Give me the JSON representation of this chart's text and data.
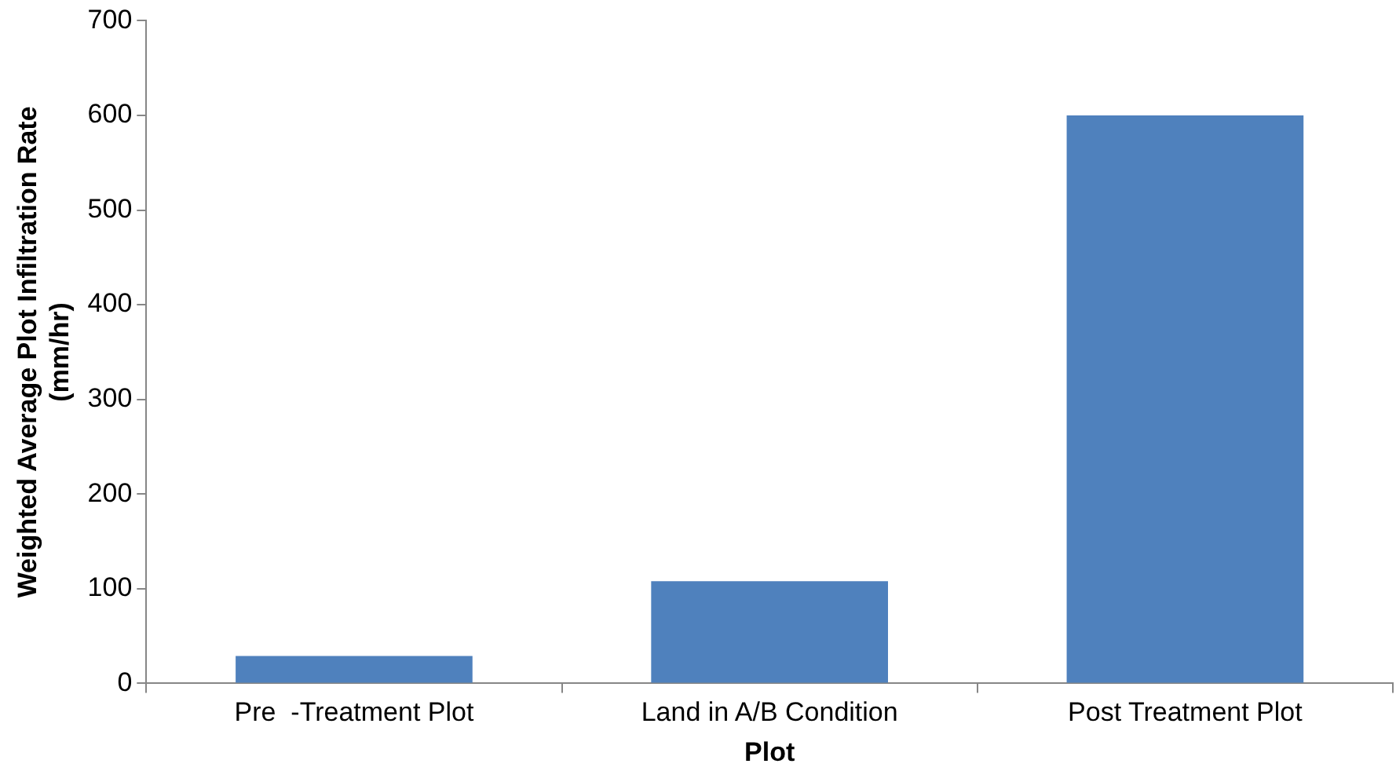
{
  "chart_data": {
    "type": "bar",
    "xlabel": "Plot",
    "ylabel": "Weighted Average Plot Infiltration Rate\n(mm/hr)",
    "categories": [
      "Pre  -Treatment Plot",
      "Land in A/B Condition",
      "Post Treatment Plot"
    ],
    "values": [
      29,
      108,
      600
    ],
    "color": "#4f81bd",
    "ylim": [
      0,
      700
    ],
    "yticks": [
      0,
      100,
      200,
      300,
      400,
      500,
      600,
      700
    ],
    "grid": false,
    "legend": false
  }
}
